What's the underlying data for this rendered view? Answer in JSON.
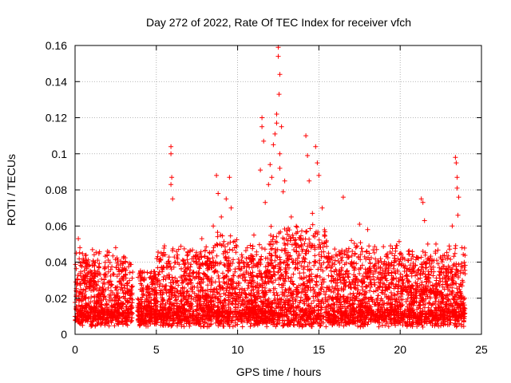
{
  "chart_data": {
    "type": "scatter",
    "title": "Day 272 of 2022, Rate Of TEC Index for receiver vfch",
    "xlabel": "GPS time / hours",
    "ylabel": "ROTI / TECUs",
    "xlim": [
      0,
      25
    ],
    "ylim": [
      0,
      0.16
    ],
    "x_ticks": [
      0,
      5,
      10,
      15,
      20,
      25
    ],
    "x_tick_labels": [
      "0",
      "5",
      "10",
      "15",
      "20",
      "25"
    ],
    "y_ticks": [
      0,
      0.02,
      0.04,
      0.06,
      0.08,
      0.1,
      0.12,
      0.14,
      0.16
    ],
    "y_tick_labels": [
      "0",
      "0.02",
      "0.04",
      "0.06",
      "0.08",
      "0.1",
      "0.12",
      "0.14",
      "0.16"
    ],
    "grid": true,
    "marker": "+",
    "color": "#ff0000",
    "series": [
      {
        "name": "ROTI",
        "note": "dense band of ~0.005-0.04 TECU/s across the day with a gap near 3.5-4 h; representative outliers listed",
        "points": [
          [
            0.2,
            0.053
          ],
          [
            0.3,
            0.048
          ],
          [
            0.5,
            0.042
          ],
          [
            1.2,
            0.038
          ],
          [
            2.0,
            0.046
          ],
          [
            2.5,
            0.048
          ],
          [
            3.0,
            0.043
          ],
          [
            5.3,
            0.045
          ],
          [
            5.5,
            0.049
          ],
          [
            5.9,
            0.104
          ],
          [
            5.9,
            0.1
          ],
          [
            5.95,
            0.087
          ],
          [
            5.9,
            0.083
          ],
          [
            6.0,
            0.075
          ],
          [
            6.3,
            0.044
          ],
          [
            7.8,
            0.053
          ],
          [
            8.5,
            0.06
          ],
          [
            8.7,
            0.088
          ],
          [
            8.8,
            0.078
          ],
          [
            9.0,
            0.065
          ],
          [
            9.3,
            0.075
          ],
          [
            9.5,
            0.087
          ],
          [
            9.6,
            0.07
          ],
          [
            10.6,
            0.048
          ],
          [
            11.0,
            0.055
          ],
          [
            11.4,
            0.091
          ],
          [
            11.5,
            0.12
          ],
          [
            11.5,
            0.115
          ],
          [
            11.6,
            0.107
          ],
          [
            11.7,
            0.073
          ],
          [
            11.9,
            0.083
          ],
          [
            12.0,
            0.094
          ],
          [
            12.1,
            0.087
          ],
          [
            12.2,
            0.105
          ],
          [
            12.3,
            0.111
          ],
          [
            12.4,
            0.122
          ],
          [
            12.4,
            0.117
          ],
          [
            12.5,
            0.159
          ],
          [
            12.5,
            0.154
          ],
          [
            12.6,
            0.144
          ],
          [
            12.55,
            0.133
          ],
          [
            12.6,
            0.1
          ],
          [
            12.6,
            0.092
          ],
          [
            12.7,
            0.115
          ],
          [
            12.8,
            0.079
          ],
          [
            12.9,
            0.085
          ],
          [
            13.3,
            0.065
          ],
          [
            13.6,
            0.056
          ],
          [
            14.2,
            0.11
          ],
          [
            14.3,
            0.099
          ],
          [
            14.4,
            0.085
          ],
          [
            14.6,
            0.067
          ],
          [
            14.8,
            0.104
          ],
          [
            14.9,
            0.095
          ],
          [
            15.0,
            0.088
          ],
          [
            15.2,
            0.07
          ],
          [
            16.5,
            0.076
          ],
          [
            17.0,
            0.052
          ],
          [
            17.5,
            0.061
          ],
          [
            18.0,
            0.058
          ],
          [
            20.5,
            0.046
          ],
          [
            21.3,
            0.075
          ],
          [
            21.4,
            0.073
          ],
          [
            21.5,
            0.063
          ],
          [
            21.7,
            0.05
          ],
          [
            22.2,
            0.05
          ],
          [
            23.2,
            0.06
          ],
          [
            23.4,
            0.098
          ],
          [
            23.45,
            0.095
          ],
          [
            23.5,
            0.087
          ],
          [
            23.5,
            0.081
          ],
          [
            23.6,
            0.076
          ],
          [
            23.55,
            0.066
          ],
          [
            23.8,
            0.048
          ]
        ]
      }
    ]
  }
}
